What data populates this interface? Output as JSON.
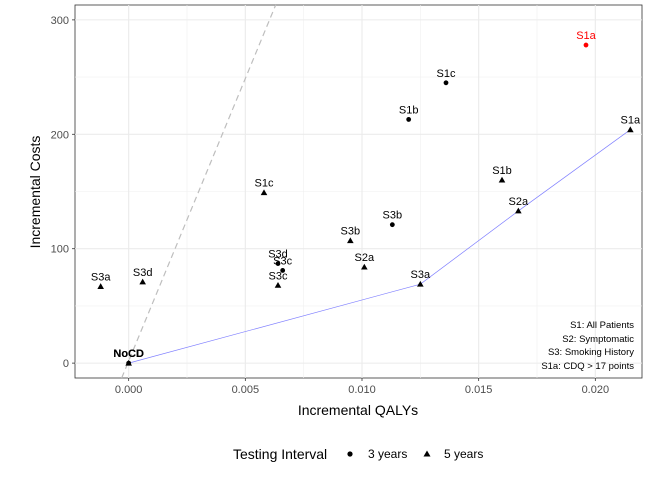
{
  "chart_data": {
    "type": "scatter",
    "xlabel": "Incremental QALYs",
    "ylabel": "Incremental Costs",
    "xlim": [
      -0.0023,
      0.022
    ],
    "ylim": [
      -13,
      313
    ],
    "x_ticks": [
      0.0,
      0.005,
      0.01,
      0.015,
      0.02
    ],
    "x_tick_labels": [
      "0.000",
      "0.005",
      "0.010",
      "0.015",
      "0.020"
    ],
    "y_ticks": [
      0,
      100,
      200,
      300
    ],
    "y_tick_labels": [
      "0",
      "100",
      "200",
      "300"
    ],
    "grid": true,
    "legend": {
      "title": "Testing Interval",
      "position": "bottom",
      "entries": [
        {
          "label": "3 years",
          "shape": "circle"
        },
        {
          "label": "5 years",
          "shape": "triangle"
        }
      ]
    },
    "points": [
      {
        "label": "NoCD",
        "x": 0.0,
        "y": 0,
        "shape": "circle",
        "color": "#000000"
      },
      {
        "label": "NoCD",
        "x": 0.0,
        "y": 0,
        "shape": "triangle",
        "color": "#000000"
      },
      {
        "label": "S1a",
        "x": 0.0196,
        "y": 278,
        "shape": "circle",
        "color": "#ff0000"
      },
      {
        "label": "S1c",
        "x": 0.0136,
        "y": 245,
        "shape": "circle",
        "color": "#000000"
      },
      {
        "label": "S1b",
        "x": 0.012,
        "y": 213,
        "shape": "circle",
        "color": "#000000"
      },
      {
        "label": "S3b",
        "x": 0.0113,
        "y": 121,
        "shape": "circle",
        "color": "#000000"
      },
      {
        "label": "S3d",
        "x": 0.0064,
        "y": 87,
        "shape": "circle",
        "color": "#000000"
      },
      {
        "label": "S3c",
        "x": 0.0066,
        "y": 81,
        "shape": "circle",
        "color": "#000000"
      },
      {
        "label": "S1a",
        "x": 0.0215,
        "y": 204,
        "shape": "triangle",
        "color": "#000000"
      },
      {
        "label": "S1b",
        "x": 0.016,
        "y": 160,
        "shape": "triangle",
        "color": "#000000"
      },
      {
        "label": "S2a",
        "x": 0.0167,
        "y": 133,
        "shape": "triangle",
        "color": "#000000"
      },
      {
        "label": "S1c",
        "x": 0.0058,
        "y": 149,
        "shape": "triangle",
        "color": "#000000"
      },
      {
        "label": "S3b",
        "x": 0.0095,
        "y": 107,
        "shape": "triangle",
        "color": "#000000"
      },
      {
        "label": "S2a",
        "x": 0.0101,
        "y": 84,
        "shape": "triangle",
        "color": "#000000"
      },
      {
        "label": "S3a",
        "x": 0.0125,
        "y": 69,
        "shape": "triangle",
        "color": "#000000"
      },
      {
        "label": "S3c",
        "x": 0.0064,
        "y": 68,
        "shape": "triangle",
        "color": "#000000"
      },
      {
        "label": "S3d",
        "x": 0.0006,
        "y": 71,
        "shape": "triangle",
        "color": "#000000"
      },
      {
        "label": "S3a",
        "x": -0.0012,
        "y": 67,
        "shape": "triangle",
        "color": "#000000"
      }
    ],
    "frontier": {
      "color": "#8080ff",
      "points": [
        [
          0.0,
          0
        ],
        [
          0.0125,
          69
        ],
        [
          0.0167,
          133
        ],
        [
          0.0215,
          204
        ]
      ]
    },
    "threshold_line": {
      "color": "#bebebe",
      "style": "dashed",
      "points": [
        [
          -0.0003,
          -13
        ],
        [
          0.0063,
          313
        ]
      ]
    },
    "annotation": [
      "S1: All Patients",
      "S2: Symptomatic",
      "S3: Smoking History",
      "S1a: CDQ > 17 points"
    ]
  }
}
